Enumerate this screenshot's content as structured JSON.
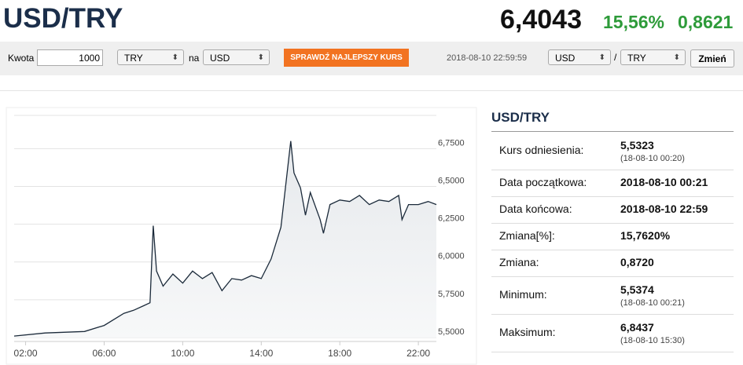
{
  "header": {
    "title": "USD/TRY",
    "price": "6,4043",
    "change_pct": "15,56%",
    "change": "0,8621"
  },
  "form": {
    "amount_label": "Kwota",
    "amount": "1000",
    "from": "TRY",
    "to_label": "na",
    "to": "USD",
    "button": "SPRAWDŹ NAJLEPSZY KURS",
    "timestamp": "2018-08-10 22:59:59",
    "pair_from": "USD",
    "pair_sep": "/",
    "pair_to": "TRY",
    "switch_button": "Zmień"
  },
  "chart_data": {
    "type": "line",
    "series": [
      {
        "color": "#1b2a3a",
        "x": [
          "01:25",
          "03:00",
          "05:00",
          "06:00",
          "07:00",
          "07:30",
          "08:00",
          "08:20",
          "08:30",
          "08:40",
          "09:00",
          "09:30",
          "10:00",
          "10:30",
          "11:00",
          "11:30",
          "12:00",
          "12:30",
          "13:00",
          "13:30",
          "14:00",
          "14:30",
          "15:00",
          "15:30",
          "15:40",
          "16:00",
          "16:15",
          "16:30",
          "17:00",
          "17:10",
          "17:30",
          "18:00",
          "18:30",
          "19:00",
          "19:30",
          "20:00",
          "20:30",
          "21:00",
          "21:10",
          "21:30",
          "22:00",
          "22:30",
          "22:55"
        ],
        "values": [
          5.51,
          5.53,
          5.54,
          5.58,
          5.66,
          5.68,
          5.71,
          5.73,
          6.24,
          5.94,
          5.84,
          5.92,
          5.86,
          5.94,
          5.89,
          5.93,
          5.81,
          5.89,
          5.88,
          5.91,
          5.89,
          6.02,
          6.23,
          6.8,
          6.59,
          6.49,
          6.31,
          6.46,
          6.28,
          6.19,
          6.38,
          6.41,
          6.4,
          6.44,
          6.38,
          6.41,
          6.4,
          6.44,
          6.28,
          6.38,
          6.38,
          6.4,
          6.38
        ]
      }
    ],
    "xlim": [
      "01:25",
      "22:55"
    ],
    "xticks": [
      "02:00",
      "06:00",
      "10:00",
      "14:00",
      "18:00",
      "22:00"
    ],
    "ylim": [
      5.5,
      6.97
    ],
    "yticks": [
      {
        "value": 5.5,
        "label": "5,5000"
      },
      {
        "value": 5.75,
        "label": "5,7500"
      },
      {
        "value": 6.0,
        "label": "6,0000"
      },
      {
        "value": 6.25,
        "label": "6,2500"
      },
      {
        "value": 6.5,
        "label": "6,5000"
      },
      {
        "value": 6.75,
        "label": "6,7500"
      }
    ],
    "grid": true
  },
  "panel": {
    "title": "USD/TRY",
    "rows": [
      {
        "label": "Kurs odniesienia:",
        "value": "5,5323",
        "sub": "(18-08-10 00:20)"
      },
      {
        "label": "Data początkowa:",
        "value": "2018-08-10 00:21"
      },
      {
        "label": "Data końcowa:",
        "value": "2018-08-10 22:59"
      },
      {
        "label": "Zmiana[%]:",
        "value": "15,7620%"
      },
      {
        "label": "Zmiana:",
        "value": "0,8720"
      },
      {
        "label": "Minimum:",
        "value": "5,5374",
        "sub": "(18-08-10 00:21)"
      },
      {
        "label": "Maksimum:",
        "value": "6,8437",
        "sub": "(18-08-10 15:30)"
      }
    ]
  }
}
